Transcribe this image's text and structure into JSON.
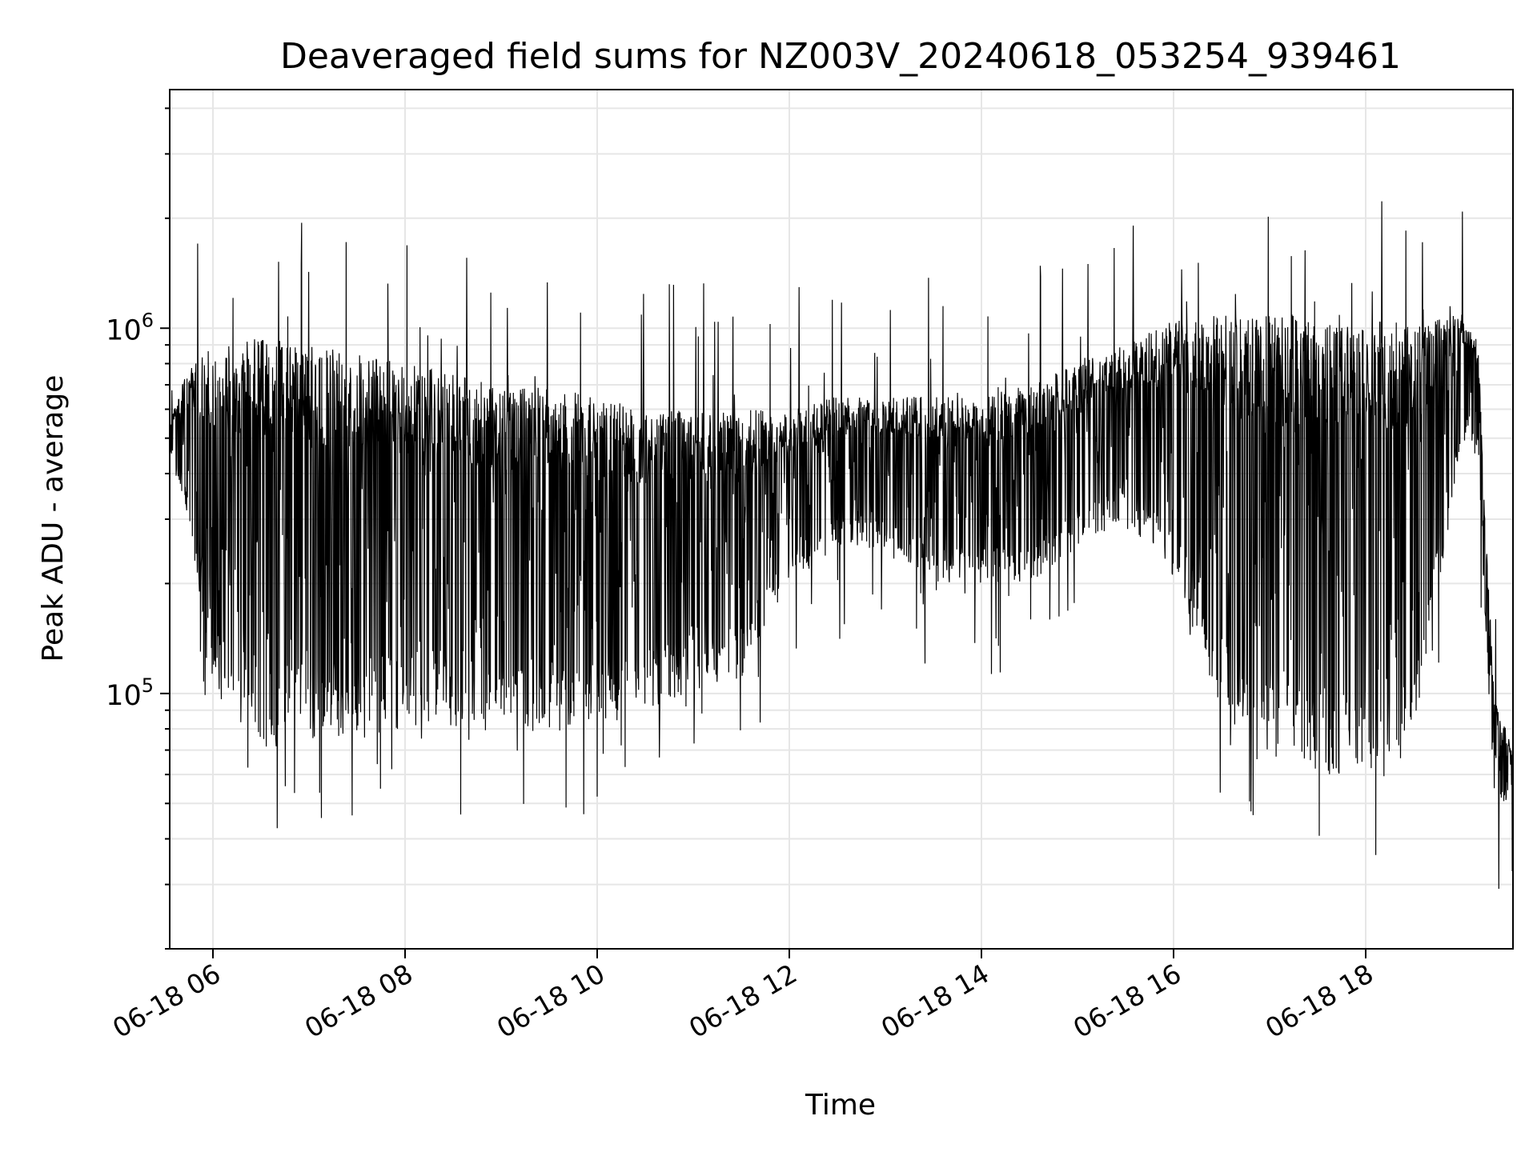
{
  "chart_data": {
    "type": "line",
    "title": "Deaveraged field sums for NZ003V_20240618_053254_939461",
    "xlabel": "Time",
    "ylabel": "Peak ADU - average",
    "yscale": "log",
    "xlim": [
      "2024-06-18 05:33",
      "2024-06-18 19:32"
    ],
    "ylim": [
      20000,
      4500000
    ],
    "grid": true,
    "line_color": "#000000",
    "x_ticks": [
      "06-18 06",
      "06-18 08",
      "06-18 10",
      "06-18 12",
      "06-18 14",
      "06-18 16",
      "06-18 18"
    ],
    "y_ticks": [
      {
        "base": "10",
        "exp": "5",
        "value": 100000
      },
      {
        "base": "10",
        "exp": "6",
        "value": 1000000
      }
    ],
    "envelope": {
      "x": [
        "2024-06-18 05:33",
        "2024-06-18 05:45",
        "2024-06-18 06:00",
        "2024-06-18 06:30",
        "2024-06-18 07:00",
        "2024-06-18 07:30",
        "2024-06-18 08:00",
        "2024-06-18 08:30",
        "2024-06-18 09:00",
        "2024-06-18 09:30",
        "2024-06-18 10:00",
        "2024-06-18 10:30",
        "2024-06-18 11:00",
        "2024-06-18 11:30",
        "2024-06-18 12:00",
        "2024-06-18 12:30",
        "2024-06-18 13:00",
        "2024-06-18 13:30",
        "2024-06-18 14:00",
        "2024-06-18 14:30",
        "2024-06-18 15:00",
        "2024-06-18 15:30",
        "2024-06-18 16:00",
        "2024-06-18 16:30",
        "2024-06-18 17:00",
        "2024-06-18 17:30",
        "2024-06-18 18:00",
        "2024-06-18 18:30",
        "2024-06-18 19:00",
        "2024-06-18 19:10",
        "2024-06-18 19:15",
        "2024-06-18 19:20",
        "2024-06-18 19:32"
      ],
      "typical_high": [
        550000,
        800000,
        900000,
        950000,
        900000,
        850000,
        800000,
        750000,
        700000,
        700000,
        650000,
        600000,
        600000,
        600000,
        600000,
        650000,
        650000,
        650000,
        650000,
        700000,
        800000,
        900000,
        1050000,
        1100000,
        1100000,
        1100000,
        1050000,
        1050000,
        1100000,
        950000,
        300000,
        100000,
        70000
      ],
      "typical_low": [
        450000,
        300000,
        100000,
        70000,
        75000,
        75000,
        80000,
        80000,
        80000,
        80000,
        80000,
        90000,
        100000,
        110000,
        200000,
        250000,
        250000,
        200000,
        200000,
        200000,
        250000,
        300000,
        200000,
        90000,
        60000,
        60000,
        60000,
        70000,
        500000,
        450000,
        150000,
        50000,
        50000
      ]
    }
  }
}
